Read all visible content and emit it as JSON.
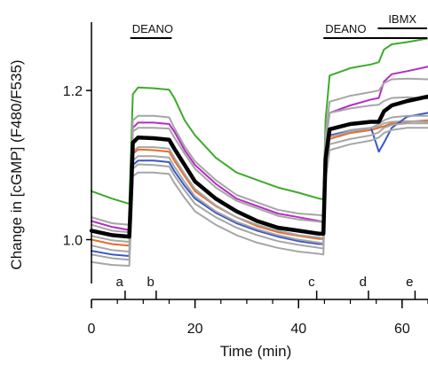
{
  "chart_data": {
    "type": "line",
    "title": "",
    "xlabel": "Time (min)",
    "ylabel": "Change in [cGMP] (F480/F535)",
    "xlim": [
      0,
      65
    ],
    "ylim": [
      0.94,
      1.3
    ],
    "xticks": [
      0,
      20,
      40,
      60
    ],
    "xticks_labels": [
      "0",
      "20",
      "40",
      "60"
    ],
    "yticks": [
      1.0,
      1.2
    ],
    "yticks_labels": [
      "1.0",
      "1.2"
    ],
    "grid": false,
    "legend": "none",
    "bars": [
      {
        "label": "DEANO",
        "x_start": 7.5,
        "x_end": 15.5
      },
      {
        "label": "DEANO",
        "x_start": 44.8,
        "x_end": 65
      },
      {
        "label": "IBMX",
        "x_start": 55.3,
        "x_end": 65
      }
    ],
    "markers": [
      {
        "label": "a",
        "x": 6.5
      },
      {
        "label": "b",
        "x": 12.5
      },
      {
        "label": "c",
        "x": 43.5
      },
      {
        "label": "d",
        "x": 53.5
      },
      {
        "label": "e",
        "x": 62.5
      }
    ],
    "x": [
      0,
      4,
      7.3,
      7.7,
      8,
      9,
      12,
      15,
      16,
      18,
      20,
      24,
      28,
      32,
      36,
      40,
      44,
      44.8,
      45.2,
      46,
      50,
      54,
      55.5,
      56.5,
      58,
      61,
      65
    ],
    "series": [
      {
        "color": "#3cab2a",
        "values": [
          1.065,
          1.055,
          1.048,
          1.13,
          1.195,
          1.204,
          1.203,
          1.201,
          1.19,
          1.16,
          1.14,
          1.11,
          1.09,
          1.08,
          1.07,
          1.063,
          1.055,
          1.054,
          1.16,
          1.22,
          1.23,
          1.235,
          1.238,
          1.255,
          1.262,
          1.265,
          1.27
        ]
      },
      {
        "color": "#b62cc4",
        "values": [
          1.025,
          1.017,
          1.013,
          1.09,
          1.15,
          1.157,
          1.157,
          1.155,
          1.145,
          1.12,
          1.1,
          1.075,
          1.055,
          1.045,
          1.035,
          1.03,
          1.025,
          1.024,
          1.13,
          1.17,
          1.18,
          1.188,
          1.19,
          1.212,
          1.222,
          1.226,
          1.232
        ]
      },
      {
        "color": "#a6a6a6",
        "values": [
          1.03,
          1.022,
          1.02,
          1.09,
          1.16,
          1.166,
          1.166,
          1.164,
          1.15,
          1.125,
          1.105,
          1.08,
          1.06,
          1.05,
          1.04,
          1.035,
          1.033,
          1.032,
          1.14,
          1.185,
          1.193,
          1.198,
          1.2,
          1.21,
          1.215,
          1.216,
          1.215
        ]
      },
      {
        "color": "#a6a6a6",
        "values": [
          1.02,
          1.012,
          1.01,
          1.08,
          1.145,
          1.15,
          1.15,
          1.149,
          1.137,
          1.115,
          1.095,
          1.07,
          1.052,
          1.042,
          1.032,
          1.027,
          1.024,
          1.023,
          1.13,
          1.17,
          1.176,
          1.18,
          1.181,
          1.186,
          1.19,
          1.191,
          1.189
        ]
      },
      {
        "color": "#000000",
        "width": 4.5,
        "values": [
          1.012,
          1.006,
          1.004,
          1.07,
          1.13,
          1.137,
          1.136,
          1.134,
          1.122,
          1.1,
          1.078,
          1.055,
          1.038,
          1.025,
          1.016,
          1.012,
          1.008,
          1.008,
          1.108,
          1.148,
          1.155,
          1.158,
          1.158,
          1.172,
          1.18,
          1.186,
          1.192
        ]
      },
      {
        "color": "#ec6a28",
        "values": [
          1.0,
          0.994,
          0.992,
          1.06,
          1.115,
          1.121,
          1.12,
          1.118,
          1.106,
          1.085,
          1.065,
          1.045,
          1.03,
          1.018,
          1.01,
          1.005,
          1.001,
          1.001,
          1.1,
          1.135,
          1.143,
          1.147,
          1.15,
          1.152,
          1.156,
          1.158,
          1.16
        ]
      },
      {
        "color": "#a6a6a6",
        "values": [
          1.005,
          0.999,
          0.997,
          1.06,
          1.118,
          1.124,
          1.124,
          1.122,
          1.11,
          1.088,
          1.068,
          1.046,
          1.03,
          1.02,
          1.012,
          1.006,
          1.003,
          1.002,
          1.102,
          1.14,
          1.147,
          1.15,
          1.152,
          1.156,
          1.158,
          1.159,
          1.158
        ]
      },
      {
        "color": "#3858c8",
        "values": [
          0.985,
          0.98,
          0.978,
          1.045,
          1.1,
          1.106,
          1.106,
          1.104,
          1.092,
          1.072,
          1.055,
          1.036,
          1.022,
          1.012,
          1.004,
          0.998,
          0.994,
          0.994,
          1.1,
          1.14,
          1.145,
          1.15,
          1.118,
          1.13,
          1.15,
          1.165,
          1.17
        ]
      },
      {
        "color": "#a6a6a6",
        "values": [
          0.992,
          0.986,
          0.984,
          1.05,
          1.106,
          1.112,
          1.112,
          1.11,
          1.098,
          1.077,
          1.058,
          1.038,
          1.024,
          1.014,
          1.006,
          1.0,
          0.996,
          0.995,
          1.098,
          1.138,
          1.145,
          1.15,
          1.155,
          1.16,
          1.164,
          1.166,
          1.166
        ]
      },
      {
        "color": "#a6a6a6",
        "values": [
          0.98,
          0.975,
          0.973,
          1.04,
          1.095,
          1.101,
          1.1,
          1.098,
          1.086,
          1.066,
          1.048,
          1.03,
          1.016,
          1.006,
          0.998,
          0.993,
          0.989,
          0.988,
          1.09,
          1.128,
          1.135,
          1.14,
          1.144,
          1.15,
          1.154,
          1.156,
          1.156
        ]
      },
      {
        "color": "#a6a6a6",
        "values": [
          0.97,
          0.966,
          0.965,
          1.03,
          1.085,
          1.09,
          1.09,
          1.088,
          1.076,
          1.056,
          1.038,
          1.02,
          1.006,
          0.996,
          0.989,
          0.984,
          0.981,
          0.98,
          1.08,
          1.12,
          1.128,
          1.133,
          1.137,
          1.143,
          1.147,
          1.15,
          1.15
        ]
      }
    ]
  }
}
